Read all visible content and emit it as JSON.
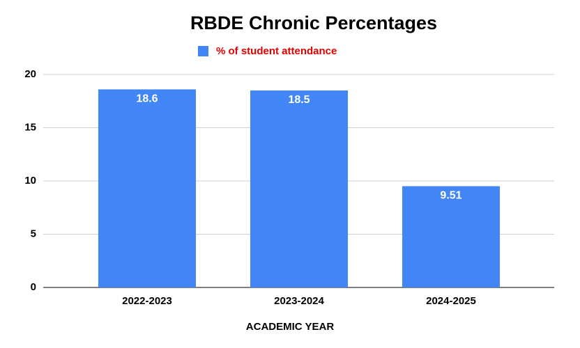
{
  "chart_data": {
    "type": "bar",
    "title": "RBDE Chronic Percentages",
    "x_label": "ACADEMIC YEAR",
    "categories": [
      "2022-2023",
      "2023-2024",
      "2024-2025"
    ],
    "series": [
      {
        "name": "% of student attendance",
        "color": "#4285f4",
        "values": [
          18.6,
          18.5,
          9.51
        ]
      }
    ],
    "ylim": [
      0,
      20
    ],
    "yticks": [
      0,
      5,
      10,
      15,
      20
    ],
    "grid": true,
    "legend": "top",
    "data_labels": true
  }
}
